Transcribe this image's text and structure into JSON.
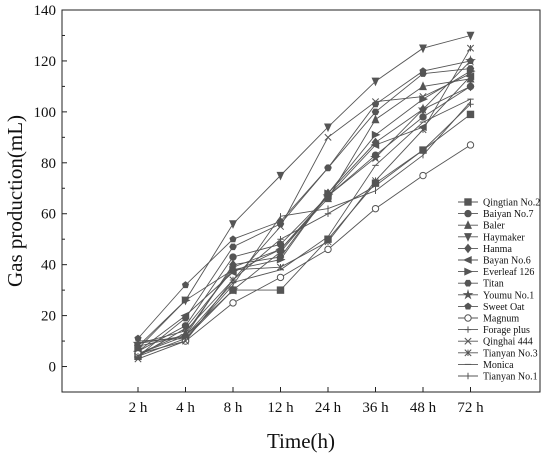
{
  "chart_data": {
    "type": "line",
    "title": "",
    "xlabel": "Time(h)",
    "ylabel": "Gas production(mL)",
    "categories": [
      "2 h",
      "4 h",
      "8 h",
      "12 h",
      "24 h",
      "36 h",
      "48 h",
      "72 h"
    ],
    "ylim": [
      -10,
      140
    ],
    "yticks": [
      0,
      20,
      40,
      60,
      80,
      100,
      120,
      140
    ],
    "grid": false,
    "legend_position": "right",
    "line_color": "#555555",
    "series": [
      {
        "name": "Qingtian No.2",
        "marker": "square",
        "values": [
          4,
          11,
          30,
          30,
          50,
          72,
          85,
          99
        ]
      },
      {
        "name": "Baiyan No.7",
        "marker": "circle",
        "values": [
          6,
          16,
          43,
          48,
          67,
          83,
          98,
          110
        ]
      },
      {
        "name": "Baler",
        "marker": "triangle-up",
        "values": [
          5,
          13,
          39,
          46,
          66,
          97,
          110,
          113
        ]
      },
      {
        "name": "Haymaker",
        "marker": "triangle-down",
        "values": [
          7,
          26,
          56,
          75,
          94,
          112,
          125,
          130
        ]
      },
      {
        "name": "Hanma",
        "marker": "diamond",
        "values": [
          5,
          12,
          40,
          43,
          68,
          88,
          101,
          110
        ]
      },
      {
        "name": "Bayan No.6",
        "marker": "triangle-left",
        "values": [
          6,
          20,
          37,
          46,
          67,
          87,
          94,
          114
        ]
      },
      {
        "name": "Everleaf 126",
        "marker": "triangle-right",
        "values": [
          8,
          26,
          38,
          42,
          68,
          91,
          105,
          116
        ]
      },
      {
        "name": "Titan",
        "marker": "hexagon",
        "values": [
          4,
          19,
          47,
          56,
          78,
          100,
          115,
          117
        ]
      },
      {
        "name": "Youmu No.1",
        "marker": "star",
        "values": [
          9,
          12,
          30,
          45,
          67,
          82,
          101,
          120
        ]
      },
      {
        "name": "Sweet Oat",
        "marker": "pentagon",
        "values": [
          11,
          32,
          50,
          57,
          78,
          103,
          116,
          120
        ]
      },
      {
        "name": "Magnum",
        "marker": "circle-half",
        "values": [
          5,
          10,
          25,
          35,
          46,
          62,
          75,
          87
        ]
      },
      {
        "name": "Forage plus",
        "marker": "plus",
        "values": [
          9,
          14,
          34,
          50,
          60,
          71,
          85,
          103
        ]
      },
      {
        "name": "Qinghai 444",
        "marker": "x",
        "values": [
          3,
          10,
          34,
          55,
          90,
          104,
          106,
          115
        ]
      },
      {
        "name": "Tianyan No.3",
        "marker": "asterisk",
        "values": [
          4,
          15,
          38,
          39,
          49,
          73,
          93,
          125
        ]
      },
      {
        "name": "Monica",
        "marker": "dash",
        "values": [
          8,
          12,
          33,
          38,
          51,
          79,
          96,
          105
        ]
      },
      {
        "name": "Tianyan No.1",
        "marker": "line",
        "values": [
          10,
          11,
          32,
          59,
          62,
          69,
          83,
          104
        ]
      }
    ]
  }
}
